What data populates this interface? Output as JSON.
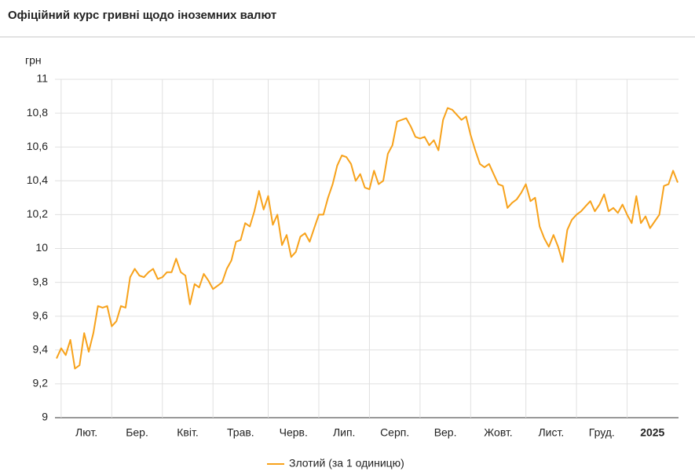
{
  "chart_data": {
    "type": "line",
    "title": "Офіційний курс гривні щодо іноземних валют",
    "y_label": "грн",
    "categories": [
      null,
      null,
      null,
      null,
      null,
      null,
      null,
      null,
      null,
      null,
      null,
      null,
      null,
      null,
      null,
      null,
      null,
      null,
      null,
      null,
      null,
      null,
      null,
      null,
      null,
      null,
      null,
      null,
      null,
      null,
      null,
      null,
      null,
      null,
      null,
      null,
      null,
      null,
      null,
      null,
      null,
      null,
      null,
      null,
      null,
      null,
      null,
      null,
      null,
      null,
      null,
      null,
      null,
      null,
      null,
      null,
      null,
      null,
      null,
      null,
      null,
      null,
      null,
      null,
      null,
      null,
      null,
      null,
      null,
      null,
      null,
      null,
      null,
      null,
      null,
      null,
      null,
      null,
      null,
      null,
      null,
      null,
      null,
      null,
      null,
      null,
      null,
      null,
      null,
      null,
      null,
      null,
      null,
      null,
      null,
      null,
      null,
      null,
      null,
      null,
      null,
      null,
      null,
      null,
      null,
      null,
      null,
      null,
      null,
      null,
      null,
      null,
      null,
      null,
      null,
      null,
      null,
      null,
      null,
      null,
      null,
      null,
      null,
      null,
      null,
      null,
      null,
      null,
      null,
      null,
      null,
      null,
      null,
      null,
      null,
      null
    ],
    "series": [
      {
        "name": "Злотий (за 1 одиницю)",
        "color": "#f7a21b",
        "values": [
          9.35,
          9.41,
          9.37,
          9.46,
          9.29,
          9.31,
          9.5,
          9.39,
          9.5,
          9.66,
          9.65,
          9.66,
          9.54,
          9.57,
          9.66,
          9.65,
          9.83,
          9.88,
          9.84,
          9.83,
          9.86,
          9.88,
          9.82,
          9.83,
          9.86,
          9.86,
          9.94,
          9.86,
          9.84,
          9.67,
          9.79,
          9.77,
          9.85,
          9.81,
          9.76,
          9.78,
          9.8,
          9.88,
          9.93,
          10.04,
          10.05,
          10.15,
          10.13,
          10.22,
          10.34,
          10.23,
          10.31,
          10.14,
          10.2,
          10.02,
          10.08,
          9.95,
          9.98,
          10.07,
          10.09,
          10.04,
          10.12,
          10.2,
          10.2,
          10.3,
          10.38,
          10.49,
          10.55,
          10.54,
          10.5,
          10.4,
          10.44,
          10.36,
          10.35,
          10.46,
          10.38,
          10.4,
          10.56,
          10.61,
          10.75,
          10.76,
          10.77,
          10.72,
          10.66,
          10.65,
          10.66,
          10.61,
          10.64,
          10.58,
          10.76,
          10.83,
          10.82,
          10.79,
          10.76,
          10.78,
          10.67,
          10.58,
          10.5,
          10.48,
          10.5,
          10.44,
          10.38,
          10.37,
          10.24,
          10.27,
          10.29,
          10.33,
          10.38,
          10.28,
          10.3,
          10.13,
          10.06,
          10.01,
          10.08,
          10.01,
          9.92,
          10.11,
          10.17,
          10.2,
          10.22,
          10.25,
          10.28,
          10.22,
          10.26,
          10.32,
          10.22,
          10.24,
          10.21,
          10.26,
          10.2,
          10.15,
          10.31,
          10.15,
          10.19,
          10.12,
          10.16,
          10.2,
          10.37,
          10.38,
          10.46,
          10.39
        ]
      }
    ],
    "ylim": [
      9,
      11
    ],
    "yticks": [
      9,
      {
        "value": 9.2,
        "label": "9,2"
      },
      {
        "value": 9.4,
        "label": "9,4"
      },
      {
        "value": 9.6,
        "label": "9,6"
      },
      {
        "value": 9.8,
        "label": "9,8"
      },
      10,
      {
        "value": 10.2,
        "label": "10,2"
      },
      {
        "value": 10.4,
        "label": "10,4"
      },
      {
        "value": 10.6,
        "label": "10,6"
      },
      {
        "value": 10.8,
        "label": "10,8"
      },
      11
    ],
    "xticks": [
      {
        "value": 1,
        "label": "Лют."
      },
      {
        "value": 12,
        "label": "Бер."
      },
      {
        "value": 23,
        "label": "Квіт."
      },
      {
        "value": 34,
        "label": "Трав."
      },
      {
        "value": 46,
        "label": "Черв."
      },
      {
        "value": 57,
        "label": "Лип."
      },
      {
        "value": 68,
        "label": "Серп."
      },
      {
        "value": 79,
        "label": "Вер."
      },
      {
        "value": 90,
        "label": "Жовт."
      },
      {
        "value": 102,
        "label": "Лист."
      },
      {
        "value": 113,
        "label": "Груд."
      },
      {
        "value": 124,
        "label": "2025"
      }
    ],
    "grid": true
  }
}
